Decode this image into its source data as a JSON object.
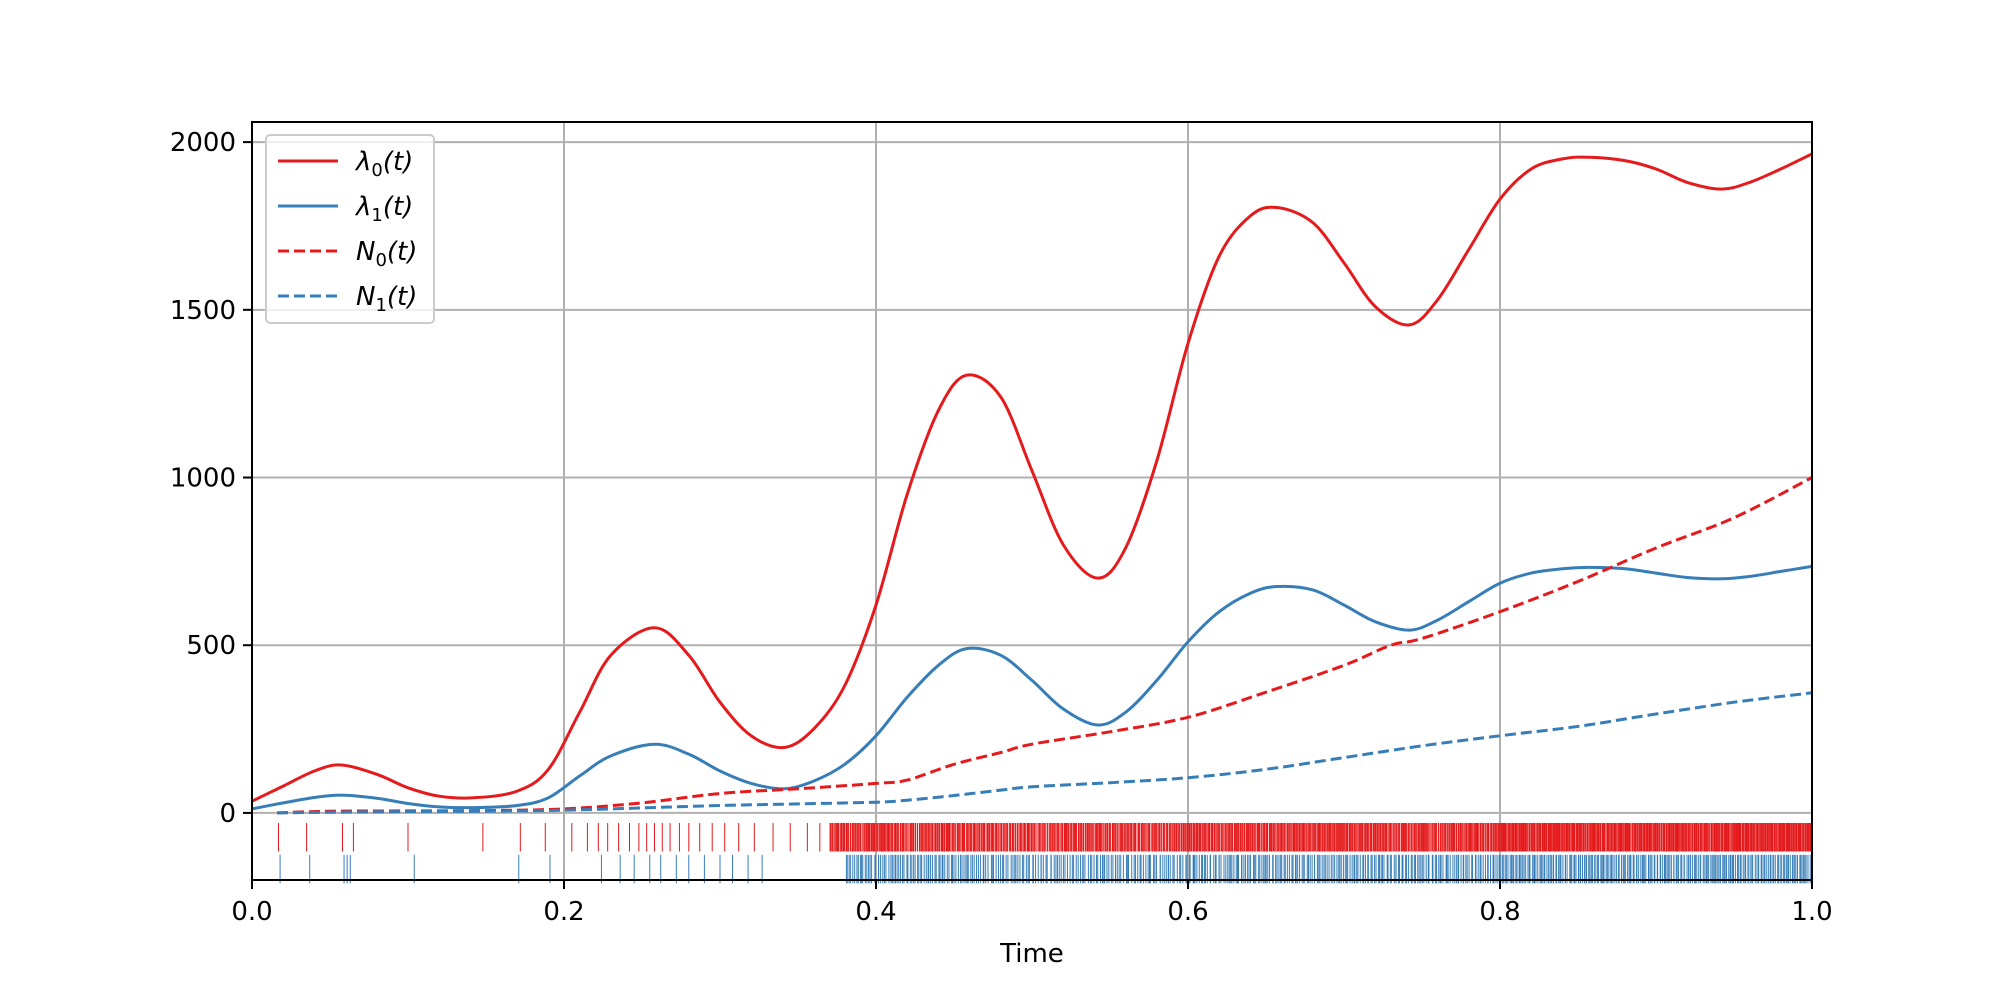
{
  "chart_data": {
    "type": "line",
    "title": "",
    "xlabel": "Time",
    "ylabel": "",
    "xlim": [
      0.0,
      1.0
    ],
    "ylim": [
      -200,
      2060
    ],
    "grid": true,
    "legend_position": "top-left",
    "xticks": [
      0.0,
      0.2,
      0.4,
      0.6,
      0.8,
      1.0
    ],
    "xtick_labels": [
      "0.0",
      "0.2",
      "0.4",
      "0.6",
      "0.8",
      "1.0"
    ],
    "yticks": [
      0,
      500,
      1000,
      1500,
      2000
    ],
    "ytick_labels": [
      "0",
      "500",
      "1000",
      "1500",
      "2000"
    ],
    "colors": {
      "series0": "#e41a1c",
      "series1": "#377eb8",
      "grid": "#b0b0b0"
    },
    "series": [
      {
        "name": "λ₀(t)",
        "name_main": "λ",
        "name_sub": "0",
        "name_arg": "(t)",
        "style": "solid",
        "color": "#e41a1c",
        "x": [
          0.0,
          0.02,
          0.04,
          0.057,
          0.08,
          0.1,
          0.12,
          0.142,
          0.17,
          0.19,
          0.21,
          0.23,
          0.258,
          0.28,
          0.3,
          0.32,
          0.341,
          0.36,
          0.38,
          0.4,
          0.42,
          0.44,
          0.458,
          0.48,
          0.5,
          0.52,
          0.542,
          0.56,
          0.58,
          0.6,
          0.62,
          0.64,
          0.657,
          0.68,
          0.7,
          0.72,
          0.742,
          0.76,
          0.78,
          0.8,
          0.82,
          0.84,
          0.857,
          0.88,
          0.9,
          0.92,
          0.942,
          0.96,
          0.98,
          1.0
        ],
        "y": [
          35,
          80,
          125,
          143,
          115,
          75,
          50,
          45,
          65,
          130,
          300,
          470,
          552,
          470,
          330,
          230,
          195,
          250,
          380,
          620,
          950,
          1200,
          1305,
          1240,
          1020,
          800,
          700,
          790,
          1050,
          1400,
          1660,
          1780,
          1805,
          1760,
          1640,
          1510,
          1455,
          1530,
          1680,
          1830,
          1920,
          1950,
          1955,
          1945,
          1920,
          1880,
          1860,
          1880,
          1920,
          1965
        ]
      },
      {
        "name": "λ₁(t)",
        "name_main": "λ",
        "name_sub": "1",
        "name_arg": "(t)",
        "style": "solid",
        "color": "#377eb8",
        "x": [
          0.0,
          0.02,
          0.04,
          0.057,
          0.08,
          0.1,
          0.12,
          0.142,
          0.17,
          0.19,
          0.21,
          0.23,
          0.258,
          0.28,
          0.3,
          0.32,
          0.341,
          0.36,
          0.38,
          0.4,
          0.42,
          0.44,
          0.458,
          0.48,
          0.5,
          0.52,
          0.542,
          0.56,
          0.58,
          0.6,
          0.62,
          0.64,
          0.657,
          0.68,
          0.7,
          0.72,
          0.742,
          0.76,
          0.78,
          0.8,
          0.82,
          0.84,
          0.857,
          0.88,
          0.9,
          0.92,
          0.942,
          0.96,
          0.98,
          1.0
        ],
        "y": [
          12,
          30,
          46,
          53,
          44,
          28,
          18,
          16,
          22,
          45,
          110,
          170,
          205,
          175,
          125,
          88,
          72,
          95,
          145,
          230,
          345,
          440,
          490,
          470,
          395,
          310,
          262,
          300,
          395,
          510,
          600,
          655,
          675,
          665,
          620,
          570,
          545,
          575,
          630,
          685,
          715,
          728,
          732,
          728,
          715,
          702,
          698,
          705,
          720,
          735
        ]
      },
      {
        "name": "N₀(t)",
        "name_main": "N",
        "name_sub": "0",
        "name_arg": "(t)",
        "style": "dashed",
        "color": "#e41a1c",
        "x": [
          0.016,
          0.05,
          0.1,
          0.15,
          0.2,
          0.25,
          0.3,
          0.35,
          0.4,
          0.42,
          0.45,
          0.48,
          0.5,
          0.55,
          0.6,
          0.65,
          0.7,
          0.73,
          0.75,
          0.8,
          0.85,
          0.9,
          0.95,
          1.0
        ],
        "y": [
          0,
          5,
          6,
          7,
          12,
          30,
          58,
          72,
          88,
          98,
          145,
          180,
          205,
          242,
          285,
          360,
          440,
          500,
          520,
          600,
          690,
          790,
          880,
          1000
        ]
      },
      {
        "name": "N₁(t)",
        "name_main": "N",
        "name_sub": "1",
        "name_arg": "(t)",
        "style": "dashed",
        "color": "#377eb8",
        "x": [
          0.016,
          0.05,
          0.1,
          0.15,
          0.2,
          0.25,
          0.3,
          0.35,
          0.4,
          0.42,
          0.45,
          0.48,
          0.5,
          0.55,
          0.6,
          0.65,
          0.7,
          0.75,
          0.8,
          0.85,
          0.9,
          0.95,
          1.0
        ],
        "y": [
          0,
          2,
          4,
          5,
          8,
          15,
          22,
          27,
          32,
          38,
          52,
          68,
          78,
          90,
          105,
          130,
          165,
          200,
          230,
          258,
          295,
          330,
          358
        ]
      }
    ],
    "event_rugs": [
      {
        "name": "events-0",
        "color": "#e41a1c",
        "y_range": [
          -115,
          -30
        ],
        "dense_intervals": [
          [
            0.37,
            0.45,
            130
          ],
          [
            0.45,
            0.6,
            220
          ],
          [
            0.6,
            0.8,
            330
          ],
          [
            0.8,
            1.0,
            400
          ]
        ],
        "sparse_events": [
          0.017,
          0.035,
          0.058,
          0.065,
          0.1,
          0.148,
          0.172,
          0.188,
          0.205,
          0.215,
          0.222,
          0.228,
          0.235,
          0.242,
          0.248,
          0.253,
          0.258,
          0.263,
          0.268,
          0.274,
          0.28,
          0.287,
          0.295,
          0.303,
          0.312,
          0.322,
          0.334,
          0.345,
          0.356,
          0.364
        ]
      },
      {
        "name": "events-1",
        "color": "#377eb8",
        "y_range": [
          -210,
          -125
        ],
        "dense_intervals": [
          [
            0.38,
            0.46,
            70
          ],
          [
            0.46,
            0.6,
            110
          ],
          [
            0.6,
            0.8,
            180
          ],
          [
            0.8,
            1.0,
            210
          ]
        ],
        "sparse_events": [
          0.018,
          0.037,
          0.059,
          0.061,
          0.063,
          0.104,
          0.171,
          0.191,
          0.224,
          0.236,
          0.245,
          0.255,
          0.262,
          0.272,
          0.28,
          0.29,
          0.3,
          0.308,
          0.318,
          0.327
        ]
      }
    ]
  }
}
